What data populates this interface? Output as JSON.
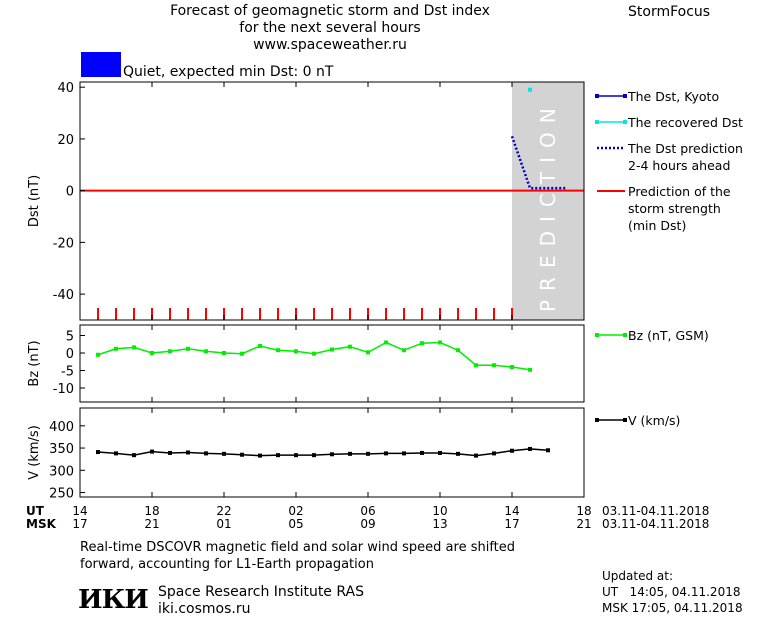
{
  "header": {
    "title_lines": [
      "Forecast of geomagnetic storm and Dst index",
      "for the next several hours",
      "www.spaceweather.ru"
    ],
    "brand": "StormFocus",
    "status_text": "Quiet, expected min Dst: 0 nT",
    "status_color": "#0000ff"
  },
  "chart_data": [
    {
      "type": "line",
      "ylabel": "Dst (nT)",
      "ylim": [
        -50,
        42
      ],
      "yticks": [
        40,
        20,
        0,
        -20,
        -40
      ],
      "x_range_hours": [
        14,
        18
      ],
      "prediction_zone_text": "PREDICTION",
      "series": [
        {
          "name": "The Dst, Kyoto",
          "color": "#0000cc",
          "x": [],
          "y": []
        },
        {
          "name": "The recovered Dst",
          "color": "#00e5e5",
          "x": [
            "15:00"
          ],
          "y": [
            39
          ]
        },
        {
          "name": "The Dst prediction 2-4 hours ahead",
          "color": "#0000cc",
          "x": [
            "14:00",
            "15:00",
            "16:00",
            "17:00"
          ],
          "y": [
            21,
            1,
            1,
            1
          ]
        },
        {
          "name": "Prediction of the storm strength (min Dst)",
          "color": "#ff0000",
          "x": [
            "14:00",
            "18:00"
          ],
          "y": [
            0,
            0
          ]
        }
      ],
      "legend": [
        {
          "lines": [
            "The Dst, Kyoto"
          ],
          "color": "#0000cc",
          "style": "square-line"
        },
        {
          "lines": [
            "The recovered Dst"
          ],
          "color": "#00e5e5",
          "style": "square-line"
        },
        {
          "lines": [
            "The Dst prediction",
            "2-4 hours ahead"
          ],
          "color": "#0000cc",
          "style": "dotted"
        },
        {
          "lines": [
            "Prediction of the",
            "storm strength",
            "(min Dst)"
          ],
          "color": "#ff0000",
          "style": "line"
        }
      ]
    },
    {
      "type": "line",
      "ylabel": "Bz (nT)",
      "ylim": [
        -14,
        8
      ],
      "yticks": [
        5,
        0,
        -5,
        -10
      ],
      "series": [
        {
          "name": "Bz (nT, GSM)",
          "color": "#00ee00",
          "y": [
            -0.5,
            1.2,
            1.6,
            0,
            0.5,
            1.2,
            0.5,
            0,
            -0.2,
            2,
            0.8,
            0.5,
            -0.2,
            1,
            1.8,
            0.2,
            3,
            0.8,
            2.8,
            3,
            0.8,
            -3.5,
            -3.5,
            -4,
            -4.8
          ]
        }
      ],
      "legend": [
        {
          "lines": [
            "Bz (nT, GSM)"
          ],
          "color": "#00ee00"
        }
      ]
    },
    {
      "type": "line",
      "ylabel": "V (km/s)",
      "ylim": [
        240,
        440
      ],
      "yticks": [
        400,
        350,
        300,
        250
      ],
      "series": [
        {
          "name": "V (km/s)",
          "color": "#000000",
          "y": [
            341,
            338,
            334,
            342,
            339,
            340,
            338,
            337,
            335,
            333,
            334,
            334,
            334,
            336,
            337,
            337,
            338,
            338,
            339,
            339,
            337,
            333,
            338,
            344,
            348,
            345
          ]
        }
      ],
      "legend": [
        {
          "lines": [
            "V (km/s)"
          ],
          "color": "#000000"
        }
      ]
    }
  ],
  "time_axis": {
    "ut_label": "UT",
    "msk_label": "MSK",
    "ut_ticks": [
      "14",
      "18",
      "22",
      "02",
      "06",
      "10",
      "14",
      "18"
    ],
    "msk_ticks": [
      "17",
      "21",
      "01",
      "05",
      "09",
      "13",
      "17",
      "21"
    ],
    "ut_date_range": "03.11-04.11.2018",
    "msk_date_range": "03.11-04.11.2018"
  },
  "footer": {
    "note_lines": [
      "Real-time DSCOVR magnetic field and solar wind speed are shifted",
      "forward, accounting for L1-Earth propagation"
    ],
    "logo_text": "ИКИ",
    "institute": "Space Research Institute RAS",
    "site": "iki.cosmos.ru",
    "updated_label": "Updated at:",
    "updated_ut": "UT   14:05, 04.11.2018",
    "updated_msk": "MSK 17:05, 04.11.2018"
  }
}
